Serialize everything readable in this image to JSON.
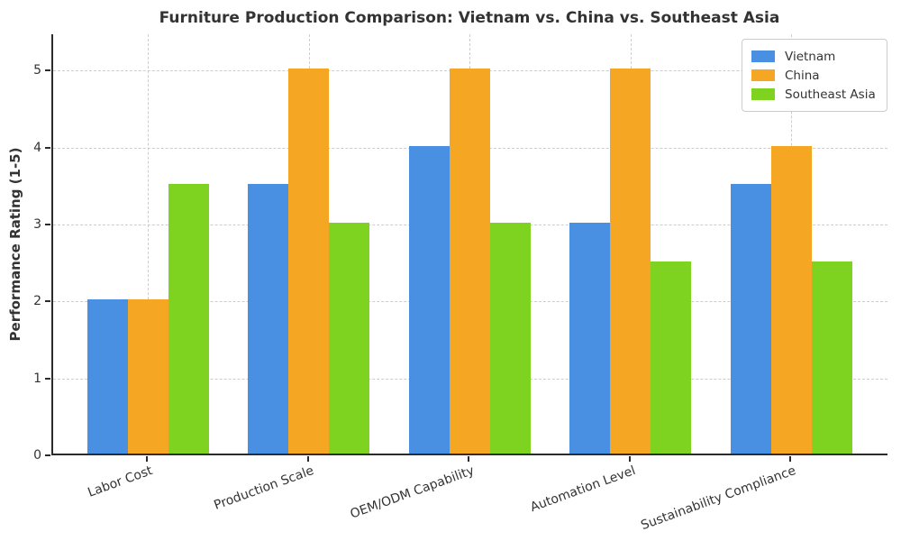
{
  "title": "Furniture Production Comparison: Vietnam vs. China vs. Southeast Asia",
  "chart_data": {
    "type": "bar",
    "title": "Furniture Production Comparison: Vietnam vs. China vs. Southeast Asia",
    "xlabel": "",
    "ylabel": "Performance Rating (1-5)",
    "categories": [
      "Labor Cost",
      "Production Scale",
      "OEM/ODM Capability",
      "Automation Level",
      "Sustainability Compliance"
    ],
    "series": [
      {
        "name": "Vietnam",
        "color": "#4a90e2",
        "values": [
          2,
          3.5,
          4,
          3,
          3.5
        ]
      },
      {
        "name": "China",
        "color": "#f5a623",
        "values": [
          2,
          5,
          5,
          5,
          4
        ]
      },
      {
        "name": "Southeast Asia",
        "color": "#7ed321",
        "values": [
          3.5,
          3,
          3,
          2.5,
          2.5
        ]
      }
    ],
    "yticks": [
      0,
      1,
      2,
      3,
      4,
      5
    ],
    "ylim": [
      0,
      5.47
    ],
    "grid": true,
    "grid_style": "dashed",
    "legend_position": "upper right",
    "bar_width_units": 0.25
  },
  "colors": {
    "background": "#ffffff",
    "text": "#333333",
    "grid": "#cccccc",
    "spine": "#2b2b2b"
  }
}
